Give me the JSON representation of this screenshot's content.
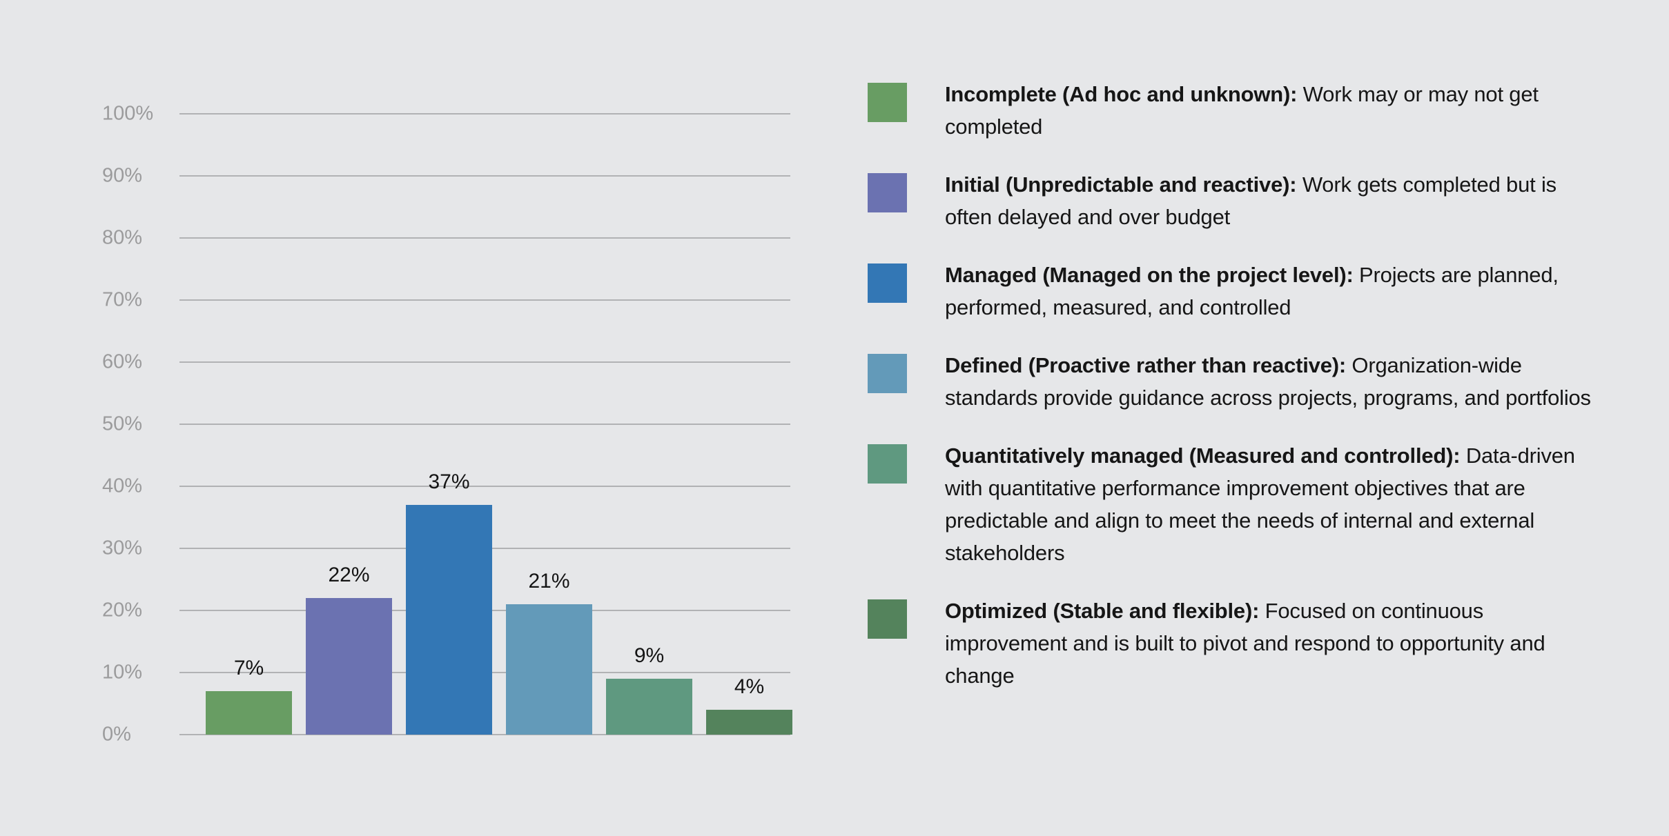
{
  "colors": {
    "background": "#e6e7e9",
    "gridline": "#b1b2b4",
    "axis_label": "#9b9b9c",
    "value_label": "#141414",
    "legend_text": "#161616"
  },
  "chart_data": {
    "type": "bar",
    "title": "",
    "xlabel": "",
    "ylabel": "",
    "categories": [
      "Incomplete",
      "Initial",
      "Managed",
      "Defined",
      "Quantitatively managed",
      "Optimized"
    ],
    "values": [
      7,
      22,
      37,
      21,
      9,
      4
    ],
    "value_labels": [
      "7%",
      "22%",
      "37%",
      "21%",
      "9%",
      "4%"
    ],
    "bar_colors": [
      "#689d63",
      "#6b72b1",
      "#3377b5",
      "#639ab9",
      "#5f9980",
      "#54835c"
    ],
    "y_tick_values": [
      0,
      10,
      20,
      30,
      40,
      50,
      60,
      70,
      80,
      90,
      100
    ],
    "y_tick_labels": [
      "0%",
      "10%",
      "20%",
      "30%",
      "40%",
      "50%",
      "60%",
      "70%",
      "80%",
      "90%",
      "100%"
    ],
    "ylim": [
      0,
      100
    ],
    "grid": true,
    "legend_position": "right"
  },
  "legend": {
    "items": [
      {
        "swatch_color": "#689d63",
        "title": "Incomplete (Ad hoc and unknown):",
        "description": "Work may or may not get completed"
      },
      {
        "swatch_color": "#6b72b1",
        "title": "Initial (Unpredictable and reactive):",
        "description": "Work gets completed but is often delayed and over budget"
      },
      {
        "swatch_color": "#3377b5",
        "title": "Managed (Managed on the project level):",
        "description": "Projects are planned, performed, measured, and controlled"
      },
      {
        "swatch_color": "#639ab9",
        "title": "Defined (Proactive rather than reactive):",
        "description": "Organization-wide standards provide guidance across projects, programs, and portfolios"
      },
      {
        "swatch_color": "#5f9980",
        "title": "Quantitatively managed (Measured and controlled):",
        "description": "Data-driven with quantitative performance improvement objectives that are predictable and align to meet the needs of internal and external stakeholders"
      },
      {
        "swatch_color": "#54835c",
        "title": "Optimized (Stable and flexible):",
        "description": "Focused on continuous improvement and is built to pivot and respond to opportunity and change"
      }
    ]
  }
}
